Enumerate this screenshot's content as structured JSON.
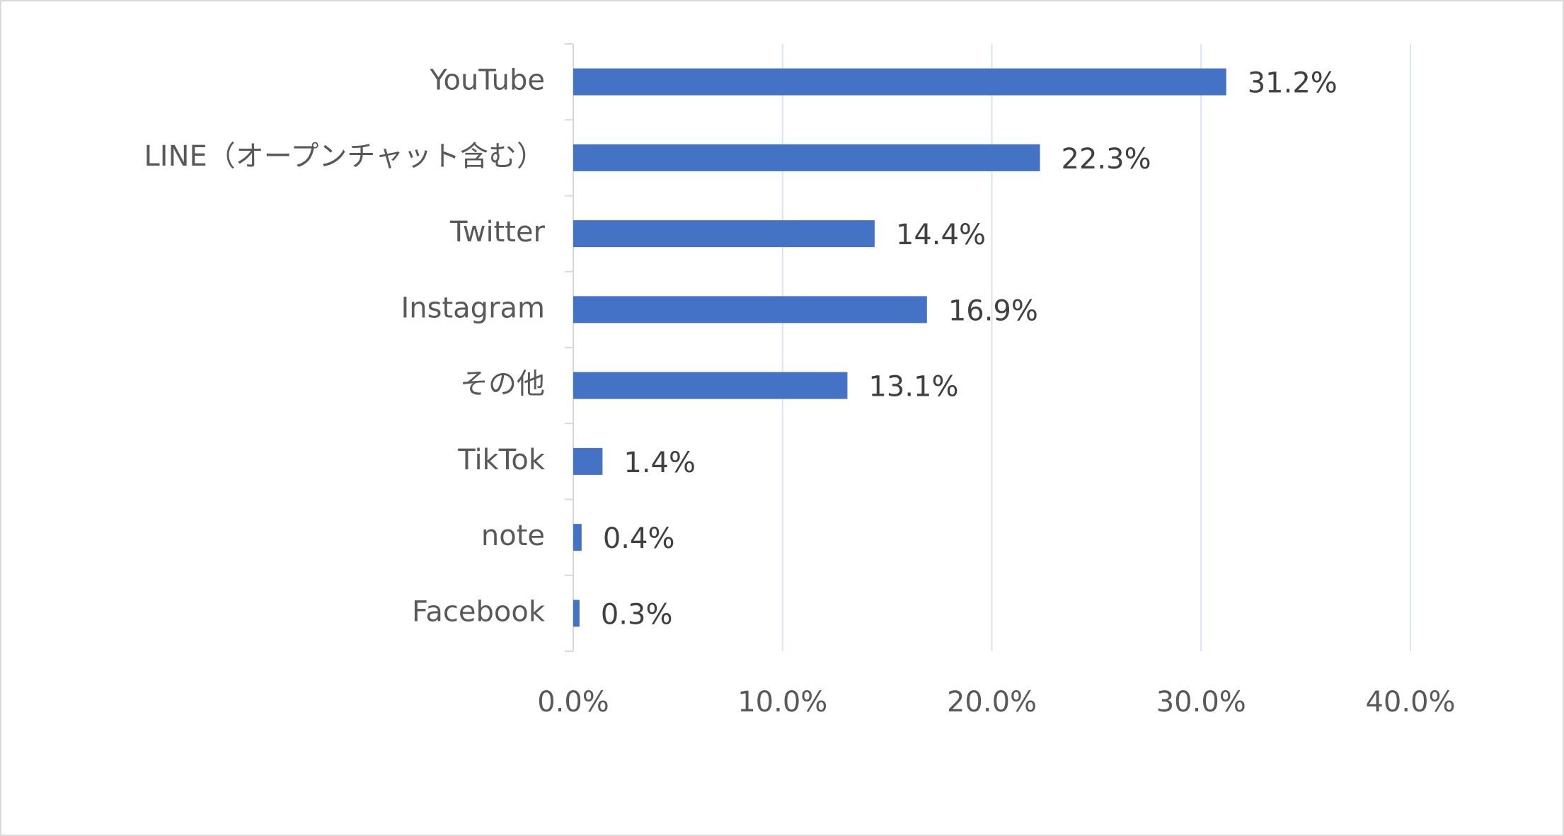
{
  "chart_data": {
    "type": "bar",
    "orientation": "horizontal",
    "categories": [
      "YouTube",
      "LINE（オープンチャット含む）",
      "Twitter",
      "Instagram",
      "その他",
      "TikTok",
      "note",
      "Facebook"
    ],
    "values": [
      31.2,
      22.3,
      14.4,
      16.9,
      13.1,
      1.4,
      0.4,
      0.3
    ],
    "data_labels": [
      "31.2%",
      "22.3%",
      "14.4%",
      "16.9%",
      "13.1%",
      "1.4%",
      "0.4%",
      "0.3%"
    ],
    "x_ticks": [
      0,
      10,
      20,
      30,
      40
    ],
    "x_tick_labels": [
      "0.0%",
      "10.0%",
      "20.0%",
      "30.0%",
      "40.0%"
    ],
    "xlim": [
      0,
      40
    ],
    "title": "",
    "xlabel": "",
    "ylabel": "",
    "grid": "vertical",
    "legend": "none",
    "bar_color": "#4472c4",
    "grid_color": "#dae3f3",
    "axis_color": "#d9d9d9"
  }
}
